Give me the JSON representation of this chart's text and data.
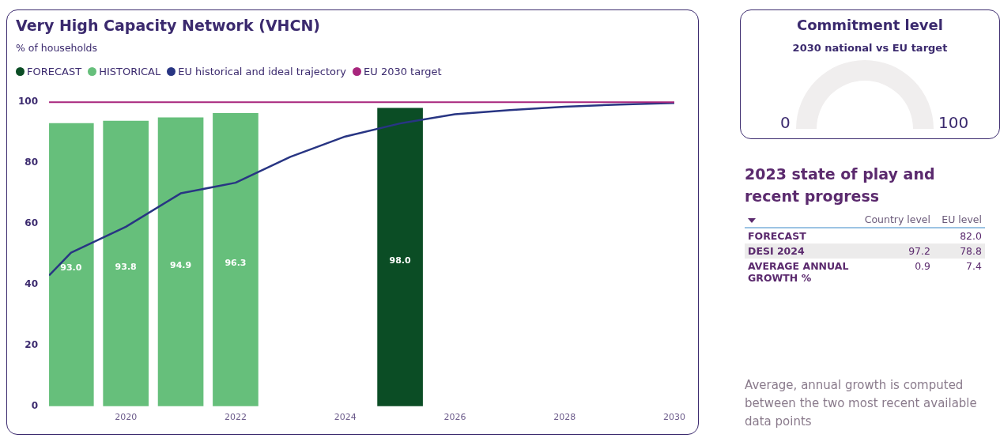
{
  "chart_data": [
    {
      "type": "bar",
      "title": "Very High Capacity Network (VHCN)",
      "subtitle": "% of households",
      "legend": "top left",
      "grid": false,
      "xlim": [
        2018.6,
        2030
      ],
      "xticks": [
        2020,
        2022,
        2024,
        2026,
        2028,
        2030
      ],
      "ylim": [
        0,
        100
      ],
      "yticks": [
        0,
        20,
        40,
        60,
        80,
        100
      ],
      "series": [
        {
          "name": "FORECAST",
          "color": "#0b4d25",
          "x": [
            2025
          ],
          "values": [
            98.0
          ],
          "value_labels": [
            "98.0"
          ]
        },
        {
          "name": "HISTORICAL",
          "color": "#66bf7b",
          "x": [
            2019,
            2020,
            2021,
            2022
          ],
          "values": [
            93.0,
            93.8,
            94.9,
            96.3
          ],
          "value_labels": [
            "93.0",
            "93.8",
            "94.9",
            "96.3"
          ]
        },
        {
          "name": "EU historical and ideal trajectory",
          "type": "line",
          "color": "#283583",
          "x": [
            2018.6,
            2019,
            2020,
            2021,
            2022,
            2023,
            2024,
            2025,
            2026,
            2027,
            2028,
            2029,
            2030
          ],
          "values": [
            43,
            50.5,
            59,
            70,
            73.5,
            82,
            88.7,
            93,
            96,
            97.4,
            98.5,
            99.2,
            99.7
          ]
        }
      ],
      "ref_lines": [
        {
          "axis": "y",
          "value": 100,
          "label": "EU 2030 target",
          "color": "#a8267d"
        }
      ]
    },
    {
      "type": "other",
      "title": "Commitment level",
      "subtitle": "2030 national vs EU target",
      "annotations": [
        "0",
        "100"
      ]
    },
    {
      "type": "heatmap",
      "title": "2023 state of play and recent progress",
      "categories": [
        "Country level",
        "EU level"
      ],
      "y_categories": [
        "FORECAST",
        "DESI 2024",
        "AVERAGE ANNUAL GROWTH %"
      ],
      "cells": [
        [
          null,
          82.0
        ],
        [
          97.2,
          78.8
        ],
        [
          0.9,
          7.4
        ]
      ],
      "cell_labels": [
        [
          null,
          "82.0"
        ],
        [
          "97.2",
          "78.8"
        ],
        [
          "0.9",
          "7.4"
        ]
      ],
      "annotations": [
        "Average, annual growth is computed between the two most recent available data points"
      ]
    }
  ]
}
